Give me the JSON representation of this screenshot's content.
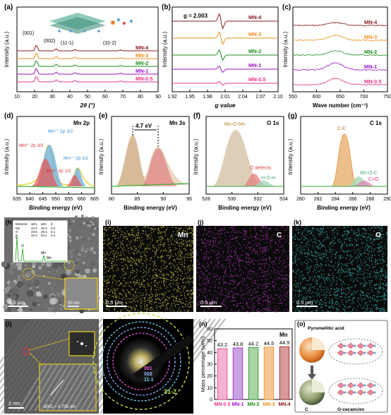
{
  "panels": {
    "a": {
      "tag": "(a)",
      "ylabel": "Intensity (a.u.)",
      "xlabel": "2θ (°)",
      "xticks": [
        "10",
        "20",
        "30",
        "40",
        "50",
        "60",
        "70",
        "80",
        "90"
      ],
      "peaks": [
        "(001)",
        "(002)",
        "(11-1)",
        "(31-2)"
      ],
      "series": [
        "MN-4",
        "MN-3",
        "MN-2",
        "MN-1",
        "MN-0.5"
      ]
    },
    "b": {
      "tag": "(b)",
      "ylabel": "Intensity (a.u.)",
      "xlabel": "g value",
      "xticks": [
        "1.92",
        "1.95",
        "1.98",
        "2.01",
        "2.04",
        "2.07",
        "2.10"
      ],
      "annotation": "g = 2.003",
      "series": [
        "MN-4",
        "MN-3",
        "MN-2",
        "MN-1",
        "MN-0.5"
      ]
    },
    "c": {
      "tag": "(c)",
      "ylabel": "Intensity (a.u.)",
      "xlabel": "Wave number (cm⁻¹)",
      "xticks": [
        "550",
        "600",
        "650",
        "700",
        "750"
      ],
      "series": [
        "MN-4",
        "MN-3",
        "MN-2",
        "MN-1",
        "MN-0.5"
      ]
    },
    "d": {
      "tag": "(d)",
      "title": "Mn 2p",
      "ylabel": "Intensity (a.u.)",
      "xlabel": "Binding energy (eV)",
      "xticks": [
        "635",
        "640",
        "645",
        "650",
        "655",
        "660",
        "665"
      ],
      "labels": [
        "Mn⁴⁺ 2p 3/2",
        "Mn³⁺ 2p 3/2",
        "Mn⁴⁺ 2p 1/2",
        "Mn³⁺ 2p 1/2"
      ]
    },
    "e": {
      "tag": "(e)",
      "title": "Mn 3s",
      "ylabel": "Intensity (a.u.)",
      "xlabel": "Binding energy (eV)",
      "xticks": [
        "80",
        "85",
        "90",
        "95"
      ],
      "annotation": "4.7 eV"
    },
    "f": {
      "tag": "(f)",
      "title": "O 1s",
      "ylabel": "Intensity (a.u.)",
      "xlabel": "Binding energy (eV)",
      "xticks": [
        "528",
        "530",
        "532",
        "534"
      ],
      "labels": [
        "Mn-O-Mn",
        "O defects",
        "H-O-H"
      ]
    },
    "g": {
      "tag": "(g)",
      "title": "C 1s",
      "ylabel": "Intensity (a.u.)",
      "xlabel": "Binding energy (eV)",
      "xticks": [
        "280",
        "282",
        "284",
        "286",
        "288",
        "290"
      ],
      "labels": [
        "C-C",
        "Mn-O-C",
        "C=O"
      ]
    },
    "h": {
      "tag": "(h)",
      "scale": "0.5 μm",
      "inset_scale": "50 nm",
      "table": {
        "header": [
          "Element",
          "wt%",
          "at%",
          "δ"
        ],
        "rows": [
          [
            "Mn",
            "44.3",
            "16.2",
            "0.3"
          ],
          [
            "O",
            "23.5",
            "29.4",
            "0.1"
          ],
          [
            "C",
            "32.2",
            "54.1",
            "0.1"
          ]
        ]
      },
      "spectrum_labels": [
        "C",
        "O",
        "Mn",
        "Mn"
      ]
    },
    "i": {
      "tag": "(i)",
      "element": "Mn",
      "scale": "0.5 μm",
      "color": "#d8d34a"
    },
    "j": {
      "tag": "(j)",
      "element": "C",
      "scale": "0.5 μm",
      "color": "#c53bd0"
    },
    "k": {
      "tag": "(k)",
      "element": "O",
      "scale": "0.5 μm",
      "color": "#3ec7c7"
    },
    "l": {
      "tag": "(l)",
      "scale": "2 nm",
      "dspacing": "d001 = 0.705 nm"
    },
    "m": {
      "tag": "(m)",
      "rings": [
        "001",
        "002",
        "11-1",
        "31-2"
      ]
    },
    "n": {
      "tag": "(n)",
      "title": "Mn",
      "ylabel": "Mass percentage (wt%)"
    },
    "o": {
      "tag": "(o)",
      "labels": [
        "Pyromellitic acid",
        "C",
        "O-vacancies"
      ]
    }
  },
  "colors": {
    "MN-4": "#8b1a1a",
    "MN-3": "#ee8c1c",
    "MN-2": "#1e8e1e",
    "MN-1": "#9a16c4",
    "MN-0.5": "#e8348a"
  },
  "chart_data": [
    {
      "type": "line",
      "panel": "a",
      "xlabel": "2θ (°)",
      "ylabel": "Intensity (a.u.)",
      "xlim": [
        0,
        90
      ],
      "peaks_2theta": [
        12.4,
        25.0,
        37.0,
        66.0
      ],
      "peak_labels": [
        "(001)",
        "(002)",
        "(11-1)",
        "(31-2)"
      ],
      "series": [
        {
          "name": "MN-4"
        },
        {
          "name": "MN-3"
        },
        {
          "name": "MN-2"
        },
        {
          "name": "MN-1"
        },
        {
          "name": "MN-0.5"
        }
      ]
    },
    {
      "type": "line",
      "panel": "b",
      "xlabel": "g value",
      "xlim": [
        1.92,
        2.1
      ],
      "center_g": 2.003,
      "series": [
        {
          "name": "MN-4",
          "amp": 1.0
        },
        {
          "name": "MN-3",
          "amp": 0.85
        },
        {
          "name": "MN-2",
          "amp": 0.7
        },
        {
          "name": "MN-1",
          "amp": 0.45
        },
        {
          "name": "MN-0.5",
          "amp": 0.25
        }
      ]
    },
    {
      "type": "line",
      "panel": "c",
      "xlabel": "Wave number (cm⁻¹)",
      "xlim": [
        550,
        750
      ],
      "peak": 640,
      "series": [
        {
          "name": "MN-4"
        },
        {
          "name": "MN-3"
        },
        {
          "name": "MN-2"
        },
        {
          "name": "MN-1"
        },
        {
          "name": "MN-0.5"
        }
      ]
    },
    {
      "type": "bar",
      "panel": "n",
      "title": "Mn",
      "ylabel": "Mass percentage (wt%)",
      "categories": [
        "MN-0.5",
        "MN-1",
        "MN-2",
        "MN-3",
        "MN-4"
      ],
      "values": [
        43.2,
        43.8,
        44.2,
        44.5,
        44.9
      ],
      "ylim": [
        0,
        60
      ],
      "yticks": [
        0,
        10,
        20,
        30,
        40,
        50,
        60
      ]
    }
  ]
}
